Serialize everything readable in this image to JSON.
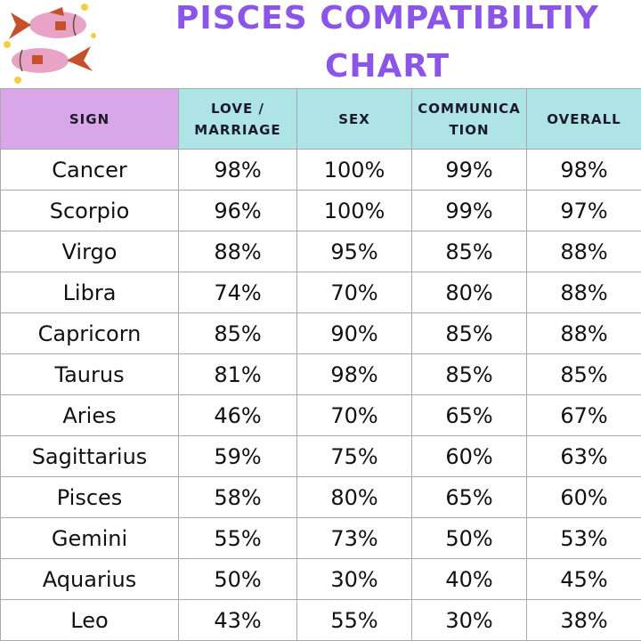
{
  "title_line1": "PISCES COMPATIBILTIY",
  "title_line2": "CHART",
  "logo": "pisces-fish-illustration",
  "colors": {
    "title": "#8b55e8",
    "sign_header": "#d9a6e8",
    "column_header": "#aee4e6"
  },
  "chart_data": {
    "type": "table",
    "title": "PISCES COMPATIBILTIY CHART",
    "columns": [
      "SIGN",
      "LOVE / MARRIAGE",
      "SEX",
      "COMMUNICA TION",
      "OVERALL"
    ],
    "rows": [
      [
        "Cancer",
        "98%",
        "100%",
        "99%",
        "98%"
      ],
      [
        "Scorpio",
        "96%",
        "100%",
        "99%",
        "97%"
      ],
      [
        "Virgo",
        "88%",
        "95%",
        "85%",
        "88%"
      ],
      [
        "Libra",
        "74%",
        "70%",
        "80%",
        "88%"
      ],
      [
        "Capricorn",
        "85%",
        "90%",
        "85%",
        "88%"
      ],
      [
        "Taurus",
        "81%",
        "98%",
        "85%",
        "85%"
      ],
      [
        "Aries",
        "46%",
        "70%",
        "65%",
        "67%"
      ],
      [
        "Sagittarius",
        "59%",
        "75%",
        "60%",
        "63%"
      ],
      [
        "Pisces",
        "58%",
        "80%",
        "65%",
        "60%"
      ],
      [
        "Gemini",
        "55%",
        "73%",
        "50%",
        "53%"
      ],
      [
        "Aquarius",
        "50%",
        "30%",
        "40%",
        "45%"
      ],
      [
        "Leo",
        "43%",
        "55%",
        "30%",
        "38%"
      ]
    ]
  }
}
